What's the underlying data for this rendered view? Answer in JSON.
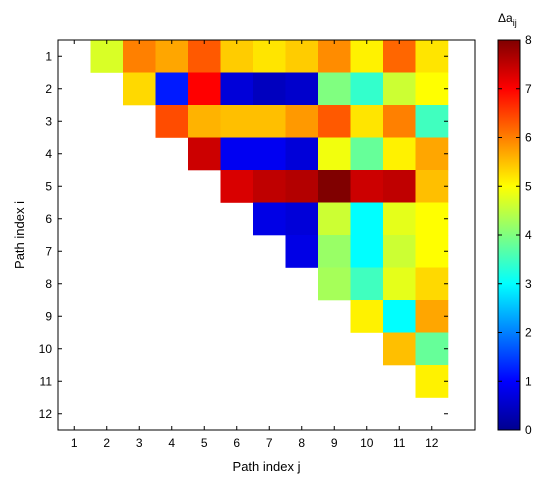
{
  "chart_data": {
    "type": "heatmap",
    "xlabel": "Path index j",
    "ylabel": "Path index i",
    "x_categories": [
      "1",
      "2",
      "3",
      "4",
      "5",
      "6",
      "7",
      "8",
      "9",
      "10",
      "11",
      "12"
    ],
    "y_categories": [
      "1",
      "2",
      "3",
      "4",
      "5",
      "6",
      "7",
      "8",
      "9",
      "10",
      "11",
      "12"
    ],
    "colorbar": {
      "title_main": "Δa",
      "title_sub": "ij",
      "range": [
        0,
        8
      ],
      "ticks": [
        "0",
        "1",
        "2",
        "3",
        "4",
        "5",
        "6",
        "7",
        "8"
      ],
      "colormap": "jet"
    },
    "values": [
      [
        null,
        4.7,
        6.0,
        5.7,
        6.3,
        5.4,
        5.2,
        5.4,
        5.9,
        5.1,
        6.2,
        5.2
      ],
      [
        null,
        null,
        5.3,
        1.2,
        7.0,
        0.7,
        0.5,
        0.6,
        4.0,
        3.4,
        4.6,
        5.0
      ],
      [
        null,
        null,
        null,
        6.4,
        5.6,
        5.5,
        5.5,
        5.8,
        6.3,
        5.2,
        6.0,
        3.5
      ],
      [
        null,
        null,
        null,
        null,
        7.4,
        0.9,
        0.9,
        0.7,
        4.9,
        3.8,
        5.1,
        5.7
      ],
      [
        null,
        null,
        null,
        null,
        null,
        7.3,
        7.5,
        7.6,
        8.0,
        7.4,
        7.5,
        5.5
      ],
      [
        null,
        null,
        null,
        null,
        null,
        null,
        0.8,
        0.7,
        4.6,
        3.0,
        4.8,
        5.0
      ],
      [
        null,
        null,
        null,
        null,
        null,
        null,
        null,
        0.8,
        4.2,
        3.0,
        4.6,
        5.0
      ],
      [
        null,
        null,
        null,
        null,
        null,
        null,
        null,
        null,
        4.3,
        3.5,
        4.8,
        5.3
      ],
      [
        null,
        null,
        null,
        null,
        null,
        null,
        null,
        null,
        null,
        5.1,
        3.0,
        5.7
      ],
      [
        null,
        null,
        null,
        null,
        null,
        null,
        null,
        null,
        null,
        null,
        5.5,
        3.8
      ],
      [
        null,
        null,
        null,
        null,
        null,
        null,
        null,
        null,
        null,
        null,
        null,
        5.1
      ],
      [
        null,
        null,
        null,
        null,
        null,
        null,
        null,
        null,
        null,
        null,
        null,
        null
      ]
    ]
  }
}
